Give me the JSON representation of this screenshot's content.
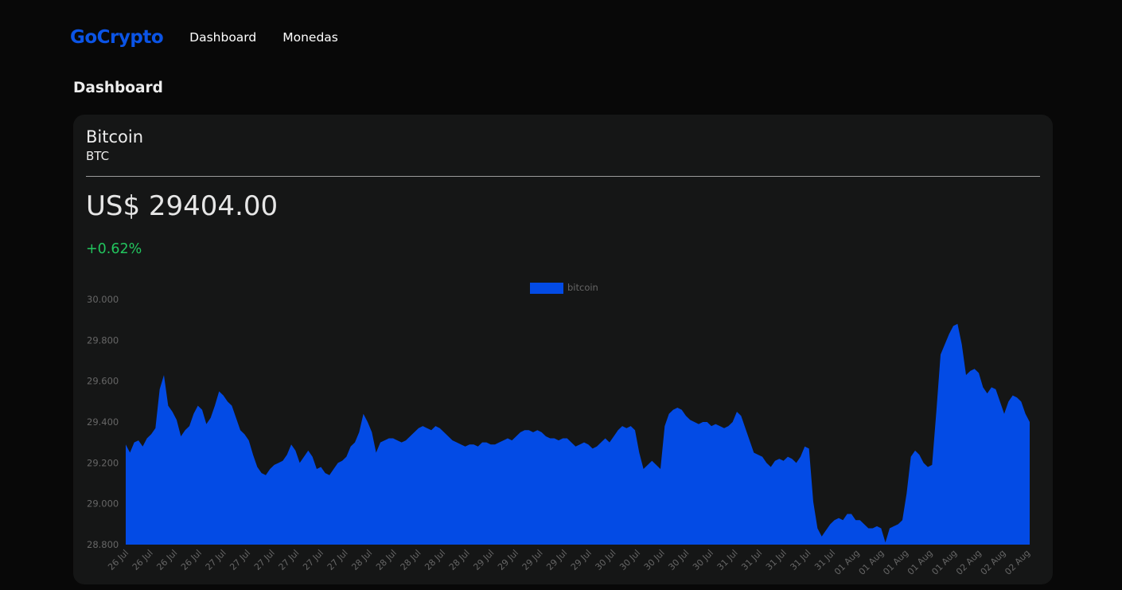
{
  "nav": {
    "logo": "GoCrypto",
    "links": [
      "Dashboard",
      "Monedas"
    ]
  },
  "page": {
    "title": "Dashboard"
  },
  "coin": {
    "name": "Bitcoin",
    "symbol": "BTC",
    "price": "US$ 29404.00",
    "change": "+0.62%",
    "change_color": "#22c55e"
  },
  "colors": {
    "brand": "#0b54e6",
    "series": "#034be5",
    "background": "#080808",
    "card": "#151616"
  },
  "chart_data": {
    "type": "area",
    "series": [
      {
        "name": "bitcoin",
        "color": "#034be5"
      }
    ],
    "legend_position": "top",
    "ylim": [
      28800,
      30000
    ],
    "yticks": [
      "30.000",
      "29.800",
      "29.600",
      "29.400",
      "29.200",
      "29.000",
      "28.800"
    ],
    "ytick_values": [
      30000,
      29800,
      29600,
      29400,
      29200,
      29000,
      28800
    ],
    "xticks": [
      "26 Jul",
      "26 Jul",
      "26 Jul",
      "26 Jul",
      "27 Jul",
      "27 Jul",
      "27 Jul",
      "27 Jul",
      "27 Jul",
      "27 Jul",
      "28 Jul",
      "28 Jul",
      "28 Jul",
      "28 Jul",
      "28 Jul",
      "29 Jul",
      "29 Jul",
      "29 Jul",
      "29 Jul",
      "29 Jul",
      "30 Jul",
      "30 Jul",
      "30 Jul",
      "30 Jul",
      "30 Jul",
      "31 Jul",
      "31 Jul",
      "31 Jul",
      "31 Jul",
      "31 Jul",
      "01 Aug",
      "01 Aug",
      "01 Aug",
      "01 Aug",
      "01 Aug",
      "02 Aug",
      "02 Aug",
      "02 Aug"
    ],
    "grid": false,
    "values": [
      29290,
      29250,
      29300,
      29310,
      29280,
      29320,
      29340,
      29370,
      29560,
      29630,
      29480,
      29450,
      29410,
      29330,
      29360,
      29380,
      29440,
      29480,
      29460,
      29390,
      29420,
      29480,
      29550,
      29530,
      29500,
      29480,
      29420,
      29360,
      29340,
      29310,
      29240,
      29180,
      29150,
      29140,
      29170,
      29190,
      29200,
      29210,
      29240,
      29290,
      29260,
      29200,
      29230,
      29260,
      29230,
      29170,
      29180,
      29150,
      29140,
      29170,
      29200,
      29210,
      29230,
      29280,
      29300,
      29350,
      29440,
      29400,
      29350,
      29250,
      29300,
      29310,
      29320,
      29320,
      29310,
      29300,
      29310,
      29330,
      29350,
      29370,
      29380,
      29370,
      29360,
      29380,
      29370,
      29350,
      29330,
      29310,
      29300,
      29290,
      29280,
      29290,
      29290,
      29280,
      29300,
      29300,
      29290,
      29290,
      29300,
      29310,
      29320,
      29310,
      29330,
      29350,
      29360,
      29360,
      29350,
      29360,
      29350,
      29330,
      29320,
      29320,
      29310,
      29320,
      29320,
      29300,
      29280,
      29290,
      29300,
      29290,
      29270,
      29280,
      29300,
      29320,
      29300,
      29330,
      29360,
      29380,
      29370,
      29380,
      29360,
      29250,
      29170,
      29190,
      29210,
      29190,
      29170,
      29380,
      29440,
      29460,
      29470,
      29460,
      29430,
      29410,
      29400,
      29390,
      29400,
      29400,
      29380,
      29390,
      29380,
      29370,
      29380,
      29400,
      29450,
      29430,
      29370,
      29310,
      29250,
      29240,
      29230,
      29200,
      29180,
      29210,
      29220,
      29210,
      29230,
      29220,
      29200,
      29230,
      29280,
      29270,
      29010,
      28880,
      28840,
      28870,
      28900,
      28920,
      28930,
      28920,
      28950,
      28950,
      28920,
      28920,
      28900,
      28880,
      28880,
      28890,
      28880,
      28810,
      28880,
      28890,
      28900,
      28920,
      29050,
      29230,
      29260,
      29240,
      29200,
      29180,
      29190,
      29450,
      29730,
      29780,
      29830,
      29870,
      29880,
      29780,
      29630,
      29650,
      29660,
      29640,
      29570,
      29540,
      29570,
      29560,
      29500,
      29440,
      29500,
      29530,
      29520,
      29500,
      29440,
      29400
    ]
  }
}
